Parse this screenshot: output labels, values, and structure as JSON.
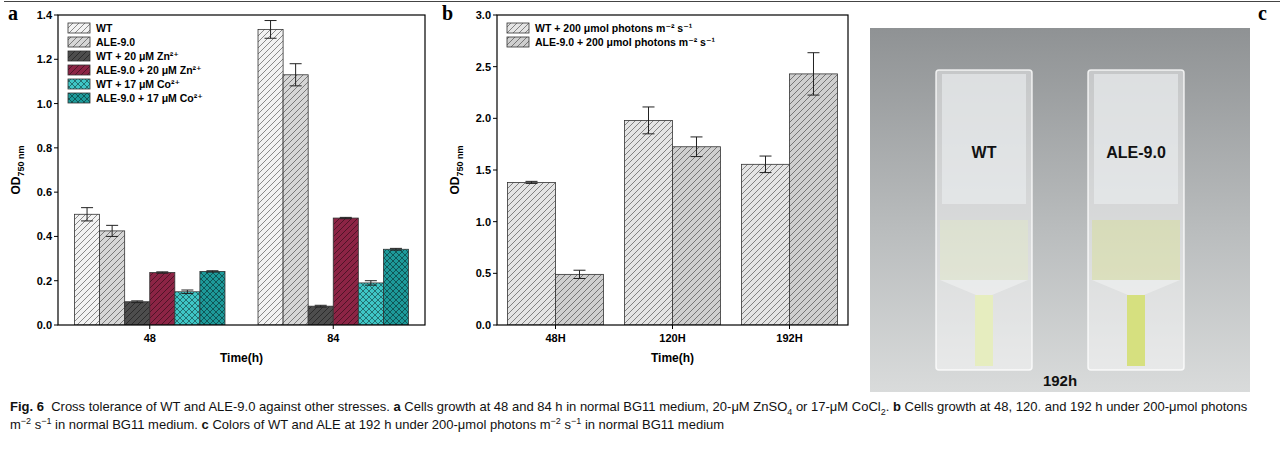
{
  "chart_data": [
    {
      "type": "bar",
      "annotations": [
        "a"
      ],
      "xlabel": "Time(h)",
      "ylabel": {
        "text": "OD",
        "subscript": "750 nm"
      },
      "categories": [
        "48",
        "84"
      ],
      "series": [
        {
          "name": "WT",
          "color": "#f2f2f2",
          "values": [
            0.5,
            1.335
          ],
          "errors": [
            0.03,
            0.04
          ]
        },
        {
          "name": "ALE-9.0",
          "color": "#d6d6d6",
          "values": [
            0.425,
            1.13
          ],
          "errors": [
            0.025,
            0.05
          ]
        },
        {
          "name": "WT + 20 μM Zn²⁺",
          "color": "#4d4d4d",
          "values": [
            0.105,
            0.085
          ],
          "errors": [
            0.004,
            0.004
          ]
        },
        {
          "name": "ALE-9.0 + 20 μM Zn²⁺",
          "color": "#8c2445",
          "values": [
            0.237,
            0.483
          ],
          "errors": [
            0.003,
            0.003
          ]
        },
        {
          "name": "WT + 17 μM Co²⁺",
          "color": "#3ec6c6",
          "values": [
            0.15,
            0.19
          ],
          "errors": [
            0.008,
            0.01
          ]
        },
        {
          "name": "ALE-9.0 + 17 μM Co²⁺",
          "color": "#1d9a9a",
          "values": [
            0.242,
            0.342
          ],
          "errors": [
            0.003,
            0.004
          ]
        }
      ],
      "ylim": [
        0,
        1.4
      ],
      "yticks": [
        {
          "value": 0,
          "label": "0.0"
        },
        {
          "value": 0.2,
          "label": "0.2"
        },
        {
          "value": 0.4,
          "label": "0.4"
        },
        {
          "value": 0.6,
          "label": "0.6"
        },
        {
          "value": 0.8,
          "label": "0.8"
        },
        {
          "value": 1.0,
          "label": "1.0"
        },
        {
          "value": 1.2,
          "label": "1.2"
        },
        {
          "value": 1.4,
          "label": "1.4"
        }
      ],
      "grid": false,
      "legend": "upper left"
    },
    {
      "type": "bar",
      "annotations": [
        "b"
      ],
      "xlabel": "Time(h)",
      "ylabel": {
        "text": "OD",
        "subscript": "750 nm"
      },
      "categories": [
        "48H",
        "120H",
        "192H"
      ],
      "series": [
        {
          "name": "WT + 200 μmol photons m⁻² s⁻¹",
          "color": "#e4e4e4",
          "values": [
            1.38,
            1.98,
            1.555
          ],
          "errors": [
            0.01,
            0.13,
            0.08
          ]
        },
        {
          "name": "ALE-9.0 + 200 μmol photons m⁻² s⁻¹",
          "color": "#cfcfcf",
          "values": [
            0.49,
            1.725,
            2.43
          ],
          "errors": [
            0.04,
            0.095,
            0.205
          ]
        }
      ],
      "ylim": [
        0,
        3.0
      ],
      "yticks": [
        {
          "value": 0,
          "label": "0.0"
        },
        {
          "value": 0.5,
          "label": "0.5"
        },
        {
          "value": 1.0,
          "label": "1.0"
        },
        {
          "value": 1.5,
          "label": "1.5"
        },
        {
          "value": 2.0,
          "label": "2.0"
        },
        {
          "value": 2.5,
          "label": "2.5"
        },
        {
          "value": 3.0,
          "label": "3.0"
        }
      ],
      "grid": false,
      "legend": "upper left"
    }
  ],
  "photo": {
    "letter": "c",
    "labels": [
      "WT",
      "ALE-9.0"
    ],
    "time": "192h"
  },
  "caption": [
    {
      "text": "Fig. 6",
      "style": "bold"
    },
    {
      "text": "  Cross tolerance of WT and ALE-9.0 against other stresses. ",
      "style": "plain"
    },
    {
      "text": "a",
      "style": "bold"
    },
    {
      "text": " Cells growth at 48 and 84 h in normal BG11 medium, 20-μM ZnSO",
      "style": "plain"
    },
    {
      "text": "4",
      "style": "sub"
    },
    {
      "text": " or 17-μM CoCl",
      "style": "plain"
    },
    {
      "text": "2",
      "style": "sub"
    },
    {
      "text": ". ",
      "style": "plain"
    },
    {
      "text": "b",
      "style": "bold"
    },
    {
      "text": " Cells growth at 48, 120. and 192 h under 200-μmol photons m",
      "style": "plain"
    },
    {
      "text": "−2",
      "style": "sup"
    },
    {
      "text": " s",
      "style": "plain"
    },
    {
      "text": "−1",
      "style": "sup"
    },
    {
      "text": " in normal BG11 medium. ",
      "style": "plain"
    },
    {
      "text": "c",
      "style": "bold"
    },
    {
      "text": " Colors of WT and ALE at 192 h under 200-μmol photons m",
      "style": "plain"
    },
    {
      "text": "−2",
      "style": "sup"
    },
    {
      "text": " s",
      "style": "plain"
    },
    {
      "text": "−1",
      "style": "sup"
    },
    {
      "text": " in normal BG11 medium",
      "style": "plain"
    }
  ]
}
